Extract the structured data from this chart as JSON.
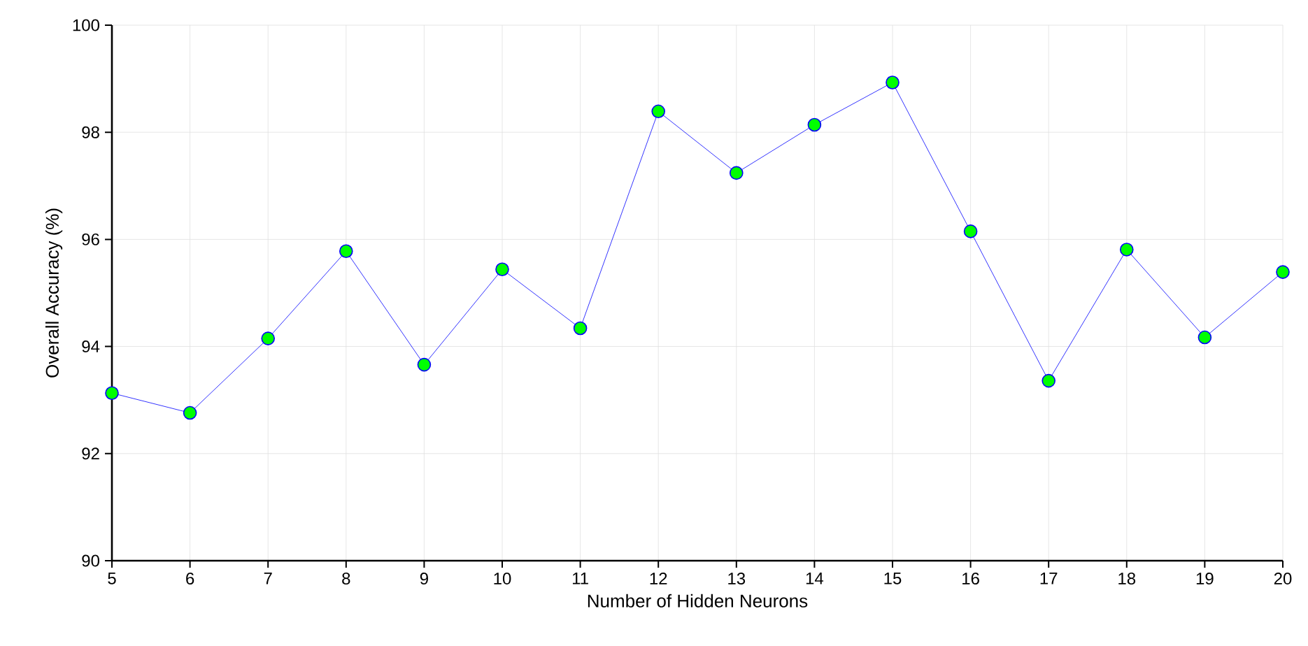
{
  "chart_data": {
    "type": "line",
    "xlabel": "Number of Hidden Neurons",
    "ylabel": "Overall Accuracy (%)",
    "x": [
      5,
      6,
      7,
      8,
      9,
      10,
      11,
      12,
      13,
      14,
      15,
      16,
      17,
      18,
      19,
      20
    ],
    "series": [
      {
        "color": "#0000ff",
        "values": [
          93.13,
          92.76,
          94.15,
          95.78,
          93.66,
          95.44,
          94.34,
          98.39,
          97.24,
          98.14,
          98.93,
          96.15,
          93.36,
          95.81,
          94.17,
          95.39
        ]
      }
    ],
    "xlim": [
      5,
      20
    ],
    "xticks": [
      5,
      6,
      7,
      8,
      9,
      10,
      11,
      12,
      13,
      14,
      15,
      16,
      17,
      18,
      19,
      20
    ],
    "ylim": [
      90,
      100
    ],
    "yticks": [
      90,
      92,
      94,
      96,
      98,
      100
    ],
    "grid": true,
    "marker": "circle",
    "line_style": "solid"
  }
}
